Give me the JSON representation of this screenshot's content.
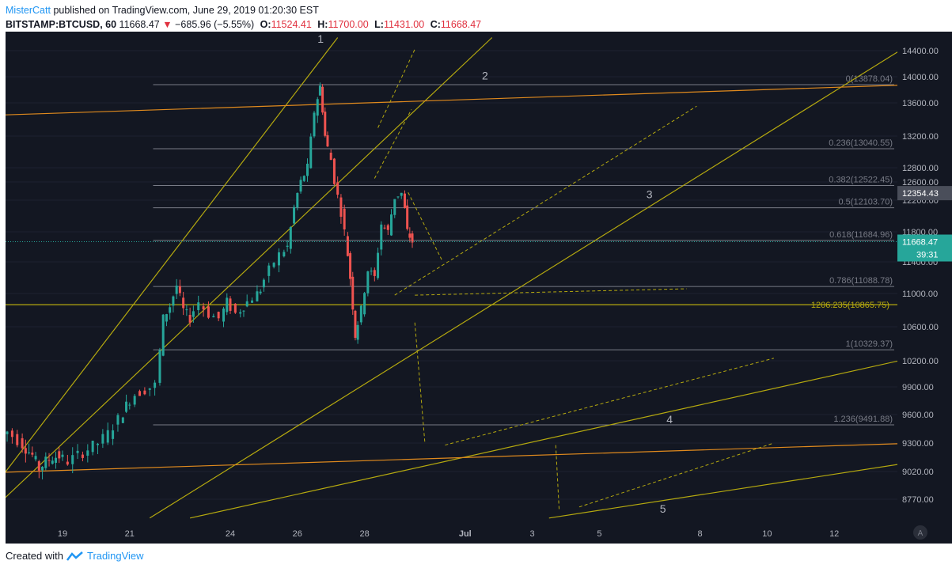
{
  "header": {
    "author": "MisterCatt",
    "published": "published on TradingView.com, June 29, 2019 01:20:30 EST",
    "symbol": "BITSTAMP:BTCUSD, 60",
    "last": "11668.47",
    "change": "−685.96 (−5.55%)",
    "o_label": "O:",
    "o": "11524.41",
    "h_label": "H:",
    "h": "11700.00",
    "l_label": "L:",
    "l": "11431.00",
    "c_label": "C:",
    "c": "11668.47"
  },
  "footer": {
    "created": "Created with",
    "brand": "TradingView"
  },
  "colors": {
    "background": "#131722",
    "up": "#26a69a",
    "down": "#ef5350",
    "fib": "#787b86",
    "trend": "#b5a90f",
    "orange_line": "#e08a1e",
    "current_price": "#26a69a",
    "crosshair_price": "#4a4e5a"
  },
  "chart_data": {
    "type": "candlestick",
    "title": "",
    "x_ticks": [
      "19",
      "21",
      "24",
      "26",
      "28",
      "Jul",
      "3",
      "5",
      "8",
      "10",
      "12"
    ],
    "y_ticks": [
      "14400.00",
      "14000.00",
      "13600.00",
      "13200.00",
      "12800.00",
      "12600.00",
      "12200.00",
      "11800.00",
      "11400.00",
      "11000.00",
      "10600.00",
      "10200.00",
      "9900.00",
      "9600.00",
      "9300.00",
      "9020.00",
      "8770.00"
    ],
    "y_tick_values": [
      14400,
      14000,
      13600,
      13200,
      12800,
      12600,
      12200,
      11800,
      11400,
      11000,
      10600,
      10200,
      9900,
      9600,
      9300,
      9020,
      8770
    ],
    "x_range_days": [
      17.2,
      13.9
    ],
    "price_labels": {
      "crosshair": "12354.43",
      "current": "11668.47",
      "countdown": "39:31"
    },
    "fib_levels": [
      {
        "label": "0(13878.04)",
        "value": 13878.04
      },
      {
        "label": "0.236(13040.55)",
        "value": 13040.55
      },
      {
        "label": "0.382(12522.45)",
        "value": 12522.45
      },
      {
        "label": "0.5(12103.70)",
        "value": 12103.7
      },
      {
        "label": "0.618(11684.96)",
        "value": 11684.96
      },
      {
        "label": "0.786(11088.78)",
        "value": 11088.78
      },
      {
        "label": "1(10329.37)",
        "value": 10329.37
      },
      {
        "label": "1.236(9491.88)",
        "value": 9491.88
      }
    ],
    "extra_label": "1206.235(10865.75)",
    "extra_level": 10865.75,
    "wave_labels": [
      "1",
      "2",
      "3",
      "4",
      "5"
    ],
    "price_path": [
      [
        17.2,
        9380
      ],
      [
        17.5,
        9420
      ],
      [
        17.8,
        9330
      ],
      [
        18.0,
        9250
      ],
      [
        18.2,
        9180
      ],
      [
        18.4,
        9050
      ],
      [
        18.6,
        9120
      ],
      [
        18.8,
        9160
      ],
      [
        19.0,
        9170
      ],
      [
        19.3,
        9120
      ],
      [
        19.6,
        9180
      ],
      [
        19.9,
        9240
      ],
      [
        20.2,
        9300
      ],
      [
        20.5,
        9400
      ],
      [
        20.8,
        9550
      ],
      [
        21.0,
        9700
      ],
      [
        21.3,
        9820
      ],
      [
        21.6,
        9870
      ],
      [
        21.9,
        9920
      ],
      [
        22.1,
        10700
      ],
      [
        22.3,
        10850
      ],
      [
        22.5,
        11100
      ],
      [
        22.7,
        10800
      ],
      [
        22.9,
        10700
      ],
      [
        23.2,
        10900
      ],
      [
        23.5,
        10750
      ],
      [
        23.8,
        10700
      ],
      [
        24.0,
        10900
      ],
      [
        24.3,
        10760
      ],
      [
        24.5,
        10850
      ],
      [
        24.8,
        10950
      ],
      [
        25.0,
        11050
      ],
      [
        25.3,
        11300
      ],
      [
        25.6,
        11500
      ],
      [
        25.8,
        11600
      ],
      [
        26.0,
        12100
      ],
      [
        26.2,
        12600
      ],
      [
        26.4,
        12800
      ],
      [
        26.6,
        13500
      ],
      [
        26.75,
        13850
      ],
      [
        26.9,
        13200
      ],
      [
        27.1,
        12900
      ],
      [
        27.3,
        12300
      ],
      [
        27.5,
        11800
      ],
      [
        27.65,
        11200
      ],
      [
        27.8,
        10500
      ],
      [
        28.0,
        10800
      ],
      [
        28.2,
        11300
      ],
      [
        28.4,
        11200
      ],
      [
        28.6,
        11900
      ],
      [
        28.8,
        11800
      ],
      [
        29.0,
        12250
      ],
      [
        29.2,
        12354
      ],
      [
        29.35,
        11800
      ],
      [
        29.5,
        11668
      ]
    ],
    "trend_lines": [
      {
        "color": "trend",
        "from": [
          16.5,
          8700
        ],
        "to": [
          27.2,
          14600
        ]
      },
      {
        "color": "trend",
        "from": [
          17.0,
          8700
        ],
        "to": [
          31.8,
          14600
        ]
      },
      {
        "color": "trend",
        "from": [
          21.6,
          8600
        ],
        "to": [
          44.2,
          14480
        ]
      },
      {
        "color": "trend",
        "from": [
          22.8,
          8600
        ],
        "to": [
          44.5,
          10250
        ]
      },
      {
        "color": "trend",
        "from": [
          33.5,
          8600
        ],
        "to": [
          44.5,
          9120
        ]
      },
      {
        "color": "orange",
        "from": [
          16.9,
          13450
        ],
        "to": [
          44.5,
          13880
        ]
      },
      {
        "color": "orange",
        "from": [
          16.9,
          9010
        ],
        "to": [
          44.5,
          9300
        ]
      },
      {
        "color": "trend_h",
        "from": [
          16.9,
          10865.75
        ],
        "to": [
          44.5,
          10865.75
        ]
      }
    ]
  }
}
